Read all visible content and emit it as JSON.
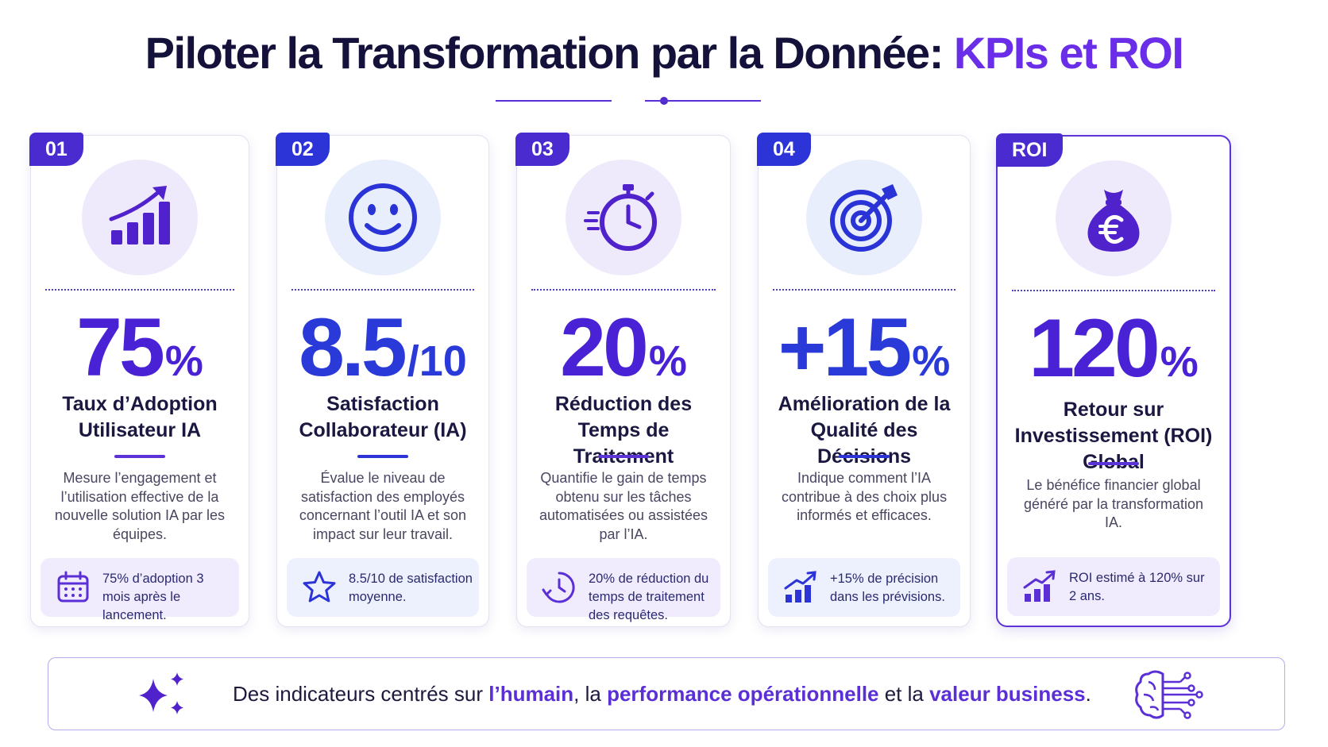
{
  "header": {
    "title_main": "Piloter la Transformation par la Donnée: ",
    "title_accent": "KPIs et ROI"
  },
  "cards": [
    {
      "badge": "01",
      "icon": "growth-chart-icon",
      "value": "75",
      "unit": "%",
      "label": "Taux d’Adoption Utilisateur IA",
      "description": "Mesure l’engagement et l’utilisation effective de la nouvelle solution IA par les équipes.",
      "footer_icon": "calendar-icon",
      "footer_text": "75% d’adoption 3 mois après le lancement."
    },
    {
      "badge": "02",
      "icon": "smiley-icon",
      "value": "8.5",
      "unit": "/10",
      "label": "Satisfaction Collaborateur (IA)",
      "description": "Évalue le niveau de satisfaction des employés concernant l’outil IA et son impact sur leur travail.",
      "footer_icon": "star-icon",
      "footer_text": "8.5/10 de satisfaction moyenne."
    },
    {
      "badge": "03",
      "icon": "stopwatch-icon",
      "value": "20",
      "unit": "%",
      "label": "Réduction des Temps de Traitement",
      "description": "Quantifie le gain de temps obtenu sur les tâches automatisées ou assistées par l’IA.",
      "footer_icon": "clock-icon",
      "footer_text": "20% de réduction du temps de traitement des requêtes."
    },
    {
      "badge": "04",
      "icon": "target-icon",
      "value": "+15",
      "unit": "%",
      "label": "Amélioration de la Qualité des Décisions",
      "description": "Indique comment l’IA contribue à des choix plus informés et efficaces.",
      "footer_icon": "bar-chart-icon",
      "footer_text": "+15% de précision dans les prévisions."
    },
    {
      "badge": "ROI",
      "icon": "money-bag-euro-icon",
      "value": "120",
      "unit": "%",
      "label": "Retour sur Investissement (ROI) Global",
      "description": "Le bénéfice financier global généré par la transformation IA.",
      "footer_icon": "bar-chart-icon",
      "footer_text": "ROI estimé à 120% sur 2 ans."
    }
  ],
  "banner": {
    "part1": "Des indicateurs centrés sur ",
    "hl1": "l’humain",
    "part2": ",  la ",
    "hl2": "performance opérationnelle",
    "part3": " et la ",
    "hl3": "valeur business",
    "part4": "."
  },
  "colors": {
    "accent_purple": "#5a2fd6",
    "accent_blue": "#2c34d8",
    "title_dark": "#14123a"
  }
}
